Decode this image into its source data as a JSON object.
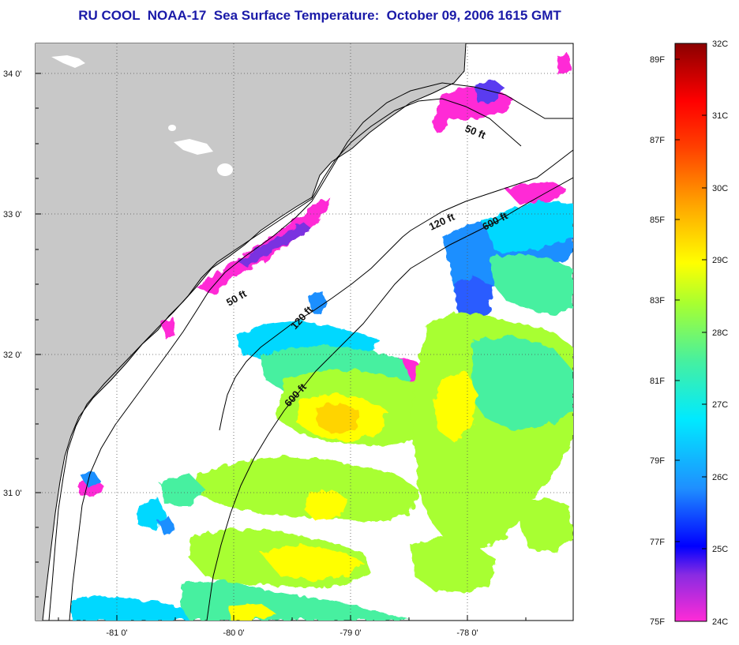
{
  "title": "RU COOL  NOAA-17  Sea Surface Temperature:  October 09, 2006 1615 GMT",
  "map": {
    "lat_ticks": [
      "31 0'",
      "32 0'",
      "33 0'",
      "34 0'"
    ],
    "lon_ticks": [
      "-81 0'",
      "-80 0'",
      "-79 0'",
      "-78 0'"
    ],
    "contours": [
      "50 ft",
      "120 ft",
      "600 ft"
    ],
    "contour_labels": [
      "50 ft",
      "120 ft",
      "600 ft",
      "50 ft",
      "120 ft",
      "600 ft"
    ]
  },
  "colorbar": {
    "fahrenheit": [
      "89F",
      "87F",
      "85F",
      "83F",
      "81F",
      "79F",
      "77F",
      "75F"
    ],
    "celsius": [
      "32C",
      "31C",
      "30C",
      "29C",
      "28C",
      "27C",
      "26C",
      "25C",
      "24C"
    ],
    "colors": [
      "#ff2bd6",
      "#8a2be2",
      "#0000ff",
      "#1f8fff",
      "#00eaff",
      "#46f0a0",
      "#a8ff30",
      "#ffff00",
      "#ffa500",
      "#ff4000",
      "#ff0000",
      "#8b0000"
    ]
  },
  "colors": {
    "land": "#c8c8c8",
    "title": "#1a1aa8"
  }
}
